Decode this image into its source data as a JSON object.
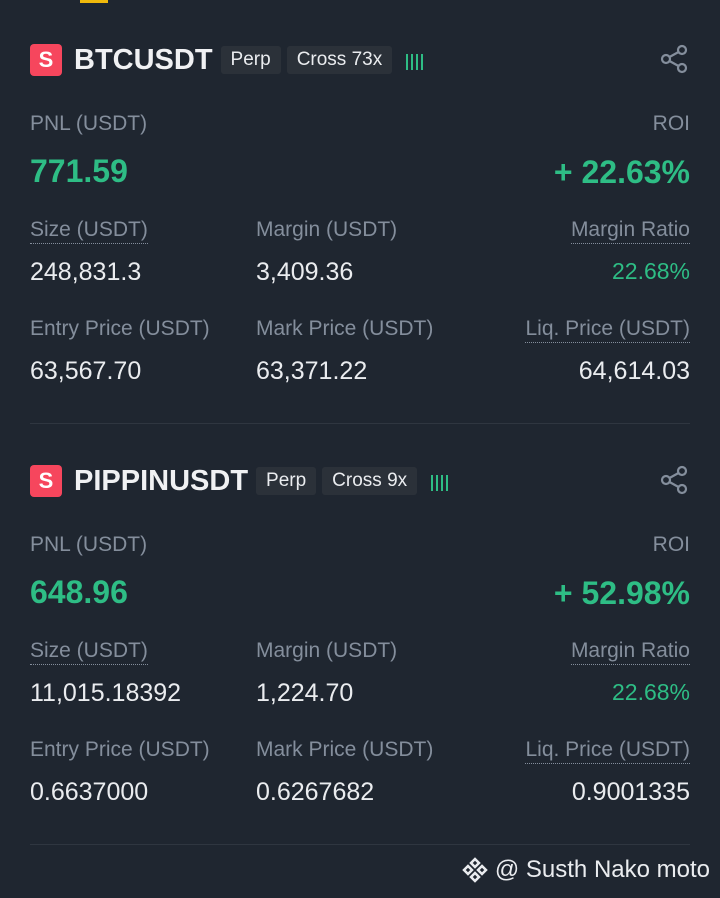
{
  "positions": [
    {
      "badge": "S",
      "symbol": "BTCUSDT",
      "tags": [
        "Perp",
        "Cross 73x"
      ],
      "pnl_label": "PNL (USDT)",
      "pnl": "771.59",
      "roi_label": "ROI",
      "roi": "+ 22.63%",
      "fields": [
        {
          "label": "Size (USDT)",
          "value": "248,831.3"
        },
        {
          "label": "Margin (USDT)",
          "value": "3,409.36"
        },
        {
          "label": "Margin Ratio",
          "value": "22.68%"
        },
        {
          "label": "Entry Price (USDT)",
          "value": "63,567.70"
        },
        {
          "label": "Mark Price (USDT)",
          "value": "63,371.22"
        },
        {
          "label": "Liq. Price (USDT)",
          "value": "64,614.03"
        }
      ]
    },
    {
      "badge": "S",
      "symbol": "PIPPINUSDT",
      "tags": [
        "Perp",
        "Cross 9x"
      ],
      "pnl_label": "PNL (USDT)",
      "pnl": "648.96",
      "roi_label": "ROI",
      "roi": "+ 52.98%",
      "fields": [
        {
          "label": "Size (USDT)",
          "value": "11,015.18392"
        },
        {
          "label": "Margin (USDT)",
          "value": "1,224.70"
        },
        {
          "label": "Margin Ratio",
          "value": "22.68%"
        },
        {
          "label": "Entry Price (USDT)",
          "value": "0.6637000"
        },
        {
          "label": "Mark Price (USDT)",
          "value": "0.6267682"
        },
        {
          "label": "Liq. Price (USDT)",
          "value": "0.9001335"
        }
      ]
    }
  ],
  "watermark": "@ Susth Nako moto"
}
